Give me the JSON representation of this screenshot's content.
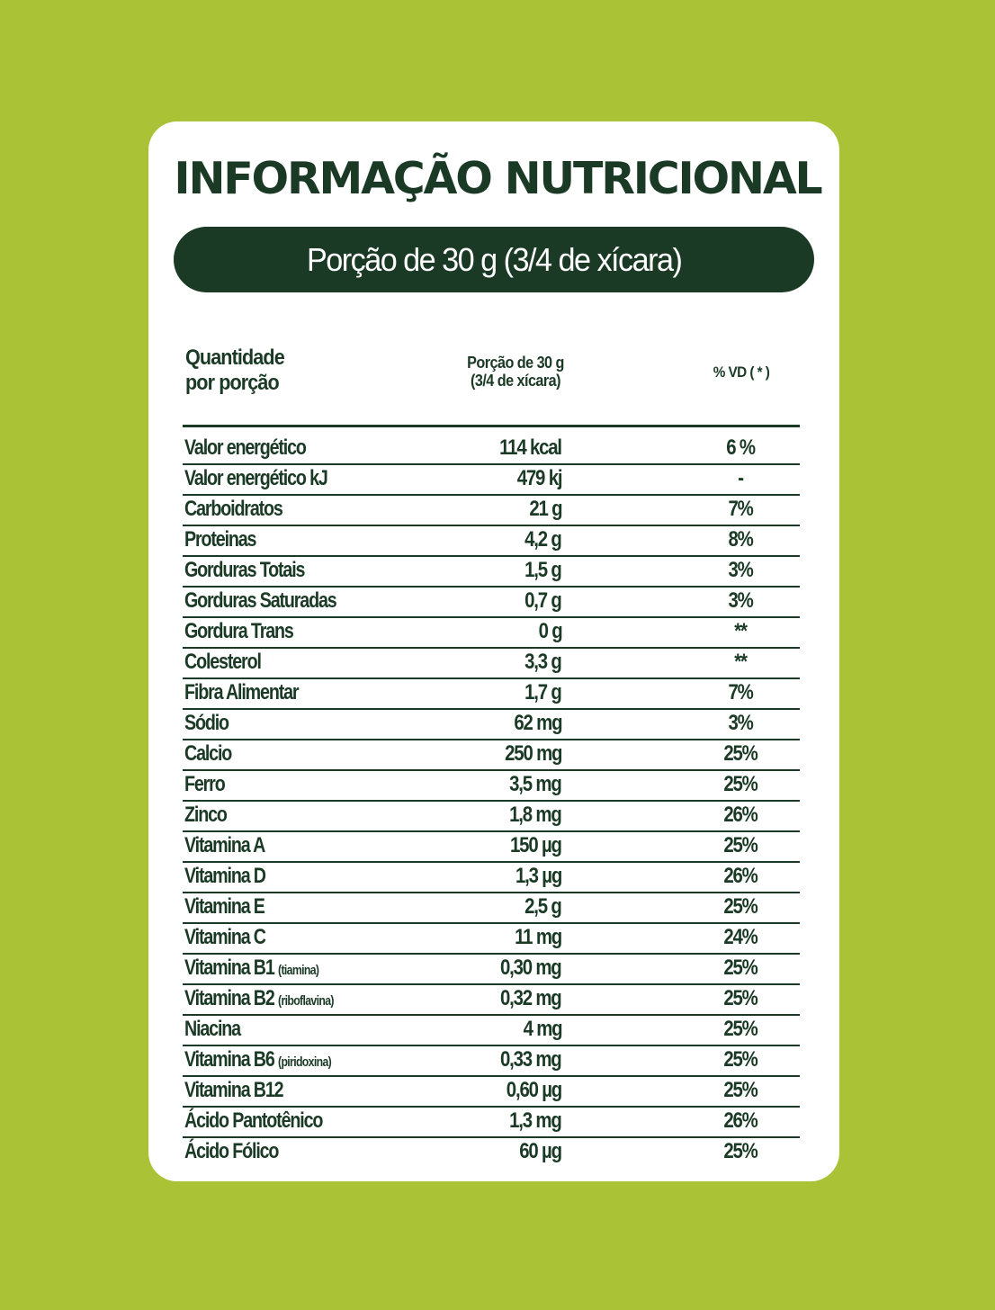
{
  "colors": {
    "background": "#a9c236",
    "card": "#ffffff",
    "dark_green": "#1b3a26"
  },
  "title": "INFORMAÇÃO NUTRICIONAL",
  "portion_banner": "Porção de 30 g (3/4 de xícara)",
  "table": {
    "headers": {
      "quantity_line1": "Quantidade",
      "quantity_line2": "por porção",
      "portion_line1": "Porção de 30 g",
      "portion_line2": "(3/4 de xícara)",
      "vd": "% VD ( * )"
    },
    "rows": [
      {
        "name": "Valor energético",
        "note": "",
        "value": "114 kcal",
        "vd": "6 %"
      },
      {
        "name": "Valor energético kJ",
        "note": "",
        "value": "479 kj",
        "vd": "-"
      },
      {
        "name": "Carboidratos",
        "note": "",
        "value": "21 g",
        "vd": "7%"
      },
      {
        "name": "Proteinas",
        "note": "",
        "value": "4,2 g",
        "vd": "8%"
      },
      {
        "name": "Gorduras Totais",
        "note": "",
        "value": "1,5 g",
        "vd": "3%"
      },
      {
        "name": "Gorduras Saturadas",
        "note": "",
        "value": "0,7 g",
        "vd": "3%"
      },
      {
        "name": "Gordura Trans",
        "note": "",
        "value": "0 g",
        "vd": "**"
      },
      {
        "name": "Colesterol",
        "note": "",
        "value": "3,3 g",
        "vd": "**"
      },
      {
        "name": "Fibra Alimentar",
        "note": "",
        "value": "1,7 g",
        "vd": "7%"
      },
      {
        "name": "Sódio",
        "note": "",
        "value": "62 mg",
        "vd": "3%"
      },
      {
        "name": "Calcio",
        "note": "",
        "value": "250 mg",
        "vd": "25%"
      },
      {
        "name": "Ferro",
        "note": "",
        "value": "3,5 mg",
        "vd": "25%"
      },
      {
        "name": "Zinco",
        "note": "",
        "value": "1,8 mg",
        "vd": "26%"
      },
      {
        "name": "Vitamina A",
        "note": "",
        "value": "150 µg",
        "vd": "25%"
      },
      {
        "name": "Vitamina D",
        "note": "",
        "value": "1,3 µg",
        "vd": "26%"
      },
      {
        "name": "Vitamina E",
        "note": "",
        "value": "2,5 g",
        "vd": "25%"
      },
      {
        "name": "Vitamina C",
        "note": "",
        "value": "11 mg",
        "vd": "24%"
      },
      {
        "name": "Vitamina B1",
        "note": "(tiamina)",
        "value": "0,30 mg",
        "vd": "25%"
      },
      {
        "name": "Vitamina B2",
        "note": "(riboflavina)",
        "value": "0,32 mg",
        "vd": "25%"
      },
      {
        "name": "Niacina",
        "note": "",
        "value": "4 mg",
        "vd": "25%"
      },
      {
        "name": "Vitamina B6",
        "note": "(piridoxina)",
        "value": "0,33 mg",
        "vd": "25%"
      },
      {
        "name": "Vitamina B12",
        "note": "",
        "value": "0,60 µg",
        "vd": "25%"
      },
      {
        "name": "Ácido Pantotênico",
        "note": "",
        "value": "1,3 mg",
        "vd": "26%"
      },
      {
        "name": "Ácido Fólico",
        "note": "",
        "value": "60 µg",
        "vd": "25%"
      }
    ]
  }
}
